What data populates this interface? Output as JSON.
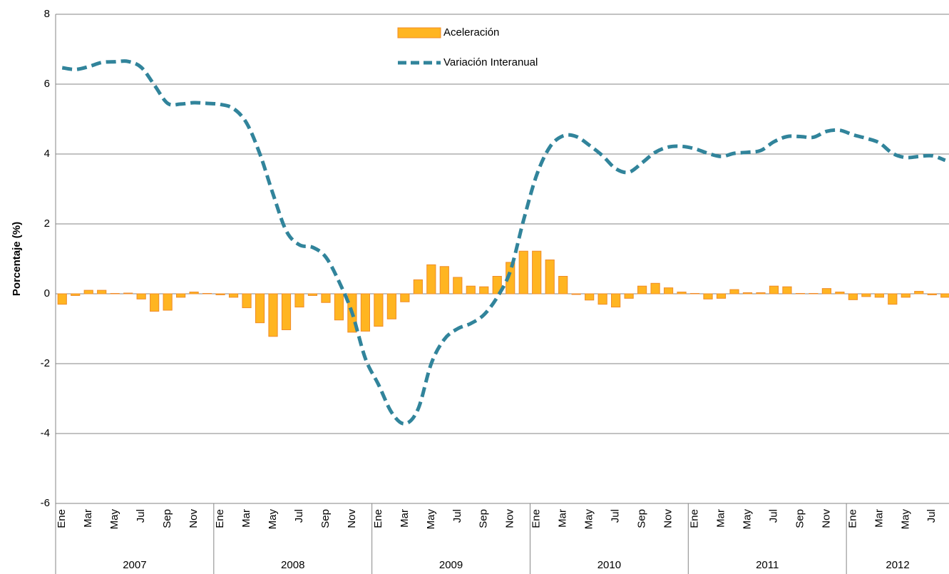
{
  "chart_data": {
    "type": "bar+line",
    "y_axis_label": "Porcentaje (%)",
    "categories": [
      "Ene",
      null,
      "Mar",
      null,
      "May",
      null,
      "Jul",
      null,
      "Sep",
      null,
      "Nov",
      null,
      "Ene",
      null,
      "Mar",
      null,
      "May",
      null,
      "Jul",
      null,
      "Sep",
      null,
      "Nov",
      null,
      "Ene",
      null,
      "Mar",
      null,
      "May",
      null,
      "Jul",
      null,
      "Sep",
      null,
      "Nov",
      null,
      "Ene",
      null,
      "Mar",
      null,
      "May",
      null,
      "Jul",
      null,
      "Sep",
      null,
      "Nov",
      null,
      "Ene",
      null,
      "Mar",
      null,
      "May",
      null,
      "Jul",
      null,
      "Sep",
      null,
      "Nov",
      null,
      "Ene",
      null,
      "Mar",
      null,
      "May",
      null,
      "Jul",
      null
    ],
    "years": [
      "2007",
      "2008",
      "2009",
      "2010",
      "2011",
      "2012"
    ],
    "series": [
      {
        "name": "Aceleración",
        "kind": "bar",
        "color": "#ffb521",
        "edge": "#f08c28",
        "values": [
          -0.3,
          -0.05,
          0.1,
          0.1,
          0.01,
          0.02,
          -0.15,
          -0.5,
          -0.47,
          -0.1,
          0.05,
          0.01,
          -0.03,
          -0.1,
          -0.4,
          -0.83,
          -1.22,
          -1.03,
          -0.38,
          -0.05,
          -0.25,
          -0.75,
          -1.1,
          -1.07,
          -0.93,
          -0.72,
          -0.23,
          0.4,
          0.83,
          0.78,
          0.47,
          0.22,
          0.2,
          0.5,
          0.9,
          1.22,
          1.22,
          0.97,
          0.5,
          -0.02,
          -0.18,
          -0.3,
          -0.38,
          -0.13,
          0.22,
          0.3,
          0.17,
          0.05,
          0.01,
          -0.15,
          -0.13,
          0.12,
          0.03,
          0.03,
          0.22,
          0.2,
          0.01,
          0.01,
          0.15,
          0.05,
          -0.17,
          -0.08,
          -0.1,
          -0.3,
          -0.1,
          0.07,
          -0.03,
          -0.1
        ]
      },
      {
        "name": "Variación Interanual",
        "kind": "line",
        "color": "#31849b",
        "dashed": true,
        "values": [
          6.47,
          6.42,
          6.5,
          6.62,
          6.64,
          6.65,
          6.48,
          5.97,
          5.45,
          5.43,
          5.47,
          5.45,
          5.42,
          5.3,
          4.88,
          4.0,
          2.85,
          1.8,
          1.4,
          1.33,
          1.05,
          0.35,
          -0.55,
          -1.85,
          -2.6,
          -3.4,
          -3.72,
          -3.3,
          -2.0,
          -1.3,
          -1.0,
          -0.85,
          -0.6,
          -0.1,
          0.65,
          2.1,
          3.4,
          4.2,
          4.52,
          4.5,
          4.25,
          3.95,
          3.58,
          3.48,
          3.75,
          4.05,
          4.2,
          4.22,
          4.15,
          4.02,
          3.93,
          4.02,
          4.05,
          4.1,
          4.35,
          4.5,
          4.5,
          4.48,
          4.65,
          4.68,
          4.55,
          4.45,
          4.32,
          4.02,
          3.9,
          3.93,
          3.95,
          3.82
        ]
      }
    ],
    "ylim": [
      -6,
      8
    ],
    "yticks": [
      -6,
      -4,
      -2,
      0,
      2,
      4,
      6,
      8
    ],
    "grid": true,
    "legend": "top"
  }
}
